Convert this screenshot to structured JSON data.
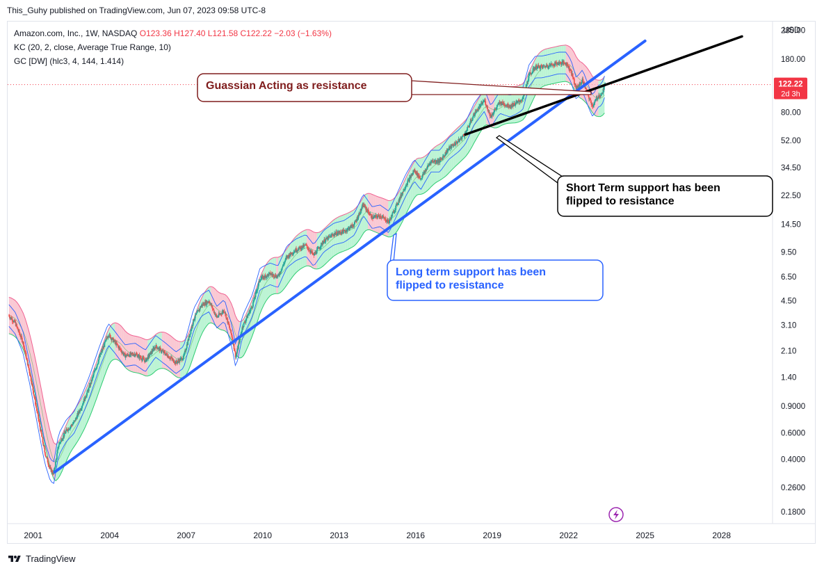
{
  "header": {
    "publisher_line": "This_Guhy published on TradingView.com, Jun 07, 2023 09:58 UTC-8"
  },
  "legend": {
    "symbol": "Amazon.com, Inc., 1W, NASDAQ",
    "ohlc": "O123.36  H127.40  L121.58  C122.22  −2.03 (−1.63%)",
    "kc": "KC (20, 2, close, Average True Range, 10)",
    "gc": "GC [DW] (hlc3, 4, 144, 1.414)"
  },
  "price_axis": {
    "currency": "USD",
    "last_price": "122.22",
    "countdown": "2d 3h"
  },
  "footer": {
    "brand": "TradingView"
  },
  "colors": {
    "candle_up": "#26a69a",
    "candle_down": "#ef5350",
    "trendline_long": "#2962ff",
    "trendline_short": "#000000",
    "keltner": "#2962ff",
    "gaussian_up": "#a5f0c5",
    "gaussian_down": "#f8b6c4",
    "price_label": "#f23645",
    "annotation_red": "#7f1d1d",
    "annotation_blue": "#2962ff"
  },
  "chart_data": {
    "type": "candlestick",
    "scale": "log",
    "x_ticks": [
      "2001",
      "2004",
      "2007",
      "2010",
      "2013",
      "2016",
      "2019",
      "2022",
      "2025",
      "2028"
    ],
    "y_ticks": [
      "280.00",
      "180.00",
      "80.00",
      "52.00",
      "34.50",
      "22.50",
      "14.50",
      "9.50",
      "6.50",
      "4.50",
      "3.10",
      "2.10",
      "1.40",
      "0.9000",
      "0.6000",
      "0.4000",
      "0.2600",
      "0.1800"
    ],
    "ylim": [
      0.15,
      320
    ],
    "xlim": [
      2000.0,
      2030.0
    ],
    "price_path": [
      [
        2000.05,
        3.6
      ],
      [
        2000.3,
        3.2
      ],
      [
        2000.6,
        2.4
      ],
      [
        2000.9,
        1.4
      ],
      [
        2001.2,
        0.75
      ],
      [
        2001.45,
        0.45
      ],
      [
        2001.65,
        0.35
      ],
      [
        2001.8,
        0.32
      ],
      [
        2002.0,
        0.5
      ],
      [
        2002.3,
        0.62
      ],
      [
        2002.6,
        0.7
      ],
      [
        2002.9,
        0.9
      ],
      [
        2003.2,
        1.2
      ],
      [
        2003.6,
        1.9
      ],
      [
        2003.95,
        2.7
      ],
      [
        2004.2,
        2.4
      ],
      [
        2004.6,
        1.95
      ],
      [
        2005.0,
        2.0
      ],
      [
        2005.4,
        1.8
      ],
      [
        2005.8,
        2.25
      ],
      [
        2006.2,
        2.0
      ],
      [
        2006.6,
        1.75
      ],
      [
        2006.9,
        1.9
      ],
      [
        2007.3,
        3.4
      ],
      [
        2007.6,
        4.2
      ],
      [
        2007.9,
        4.5
      ],
      [
        2008.2,
        3.5
      ],
      [
        2008.5,
        3.9
      ],
      [
        2008.8,
        2.6
      ],
      [
        2008.95,
        1.9
      ],
      [
        2009.2,
        3.0
      ],
      [
        2009.6,
        4.2
      ],
      [
        2009.9,
        6.3
      ],
      [
        2010.3,
        6.8
      ],
      [
        2010.6,
        6.5
      ],
      [
        2010.95,
        8.8
      ],
      [
        2011.3,
        9.8
      ],
      [
        2011.7,
        10.5
      ],
      [
        2012.0,
        9.0
      ],
      [
        2012.4,
        11.2
      ],
      [
        2012.8,
        12.5
      ],
      [
        2013.2,
        13.0
      ],
      [
        2013.6,
        14.5
      ],
      [
        2013.95,
        19.5
      ],
      [
        2014.3,
        16.0
      ],
      [
        2014.6,
        16.5
      ],
      [
        2014.95,
        15.0
      ],
      [
        2015.2,
        18.5
      ],
      [
        2015.6,
        26.0
      ],
      [
        2015.95,
        33.0
      ],
      [
        2016.2,
        29.0
      ],
      [
        2016.6,
        38.0
      ],
      [
        2016.95,
        38.0
      ],
      [
        2017.3,
        46.0
      ],
      [
        2017.7,
        52.0
      ],
      [
        2017.95,
        58.0
      ],
      [
        2018.3,
        78.0
      ],
      [
        2018.7,
        96.0
      ],
      [
        2018.95,
        75.0
      ],
      [
        2019.3,
        93.0
      ],
      [
        2019.7,
        88.0
      ],
      [
        2019.95,
        92.0
      ],
      [
        2020.2,
        98.0
      ],
      [
        2020.45,
        140.0
      ],
      [
        2020.7,
        160.0
      ],
      [
        2020.95,
        160.0
      ],
      [
        2021.3,
        165.0
      ],
      [
        2021.6,
        170.0
      ],
      [
        2021.9,
        170.0
      ],
      [
        2022.1,
        150.0
      ],
      [
        2022.3,
        115.0
      ],
      [
        2022.55,
        130.0
      ],
      [
        2022.8,
        100.0
      ],
      [
        2022.95,
        88.0
      ],
      [
        2023.15,
        102.0
      ],
      [
        2023.3,
        105.0
      ],
      [
        2023.44,
        122.22
      ]
    ],
    "annotations": [
      {
        "text": "Guassian Acting as resistance"
      },
      {
        "text": "Short Term support has been flipped to resistance"
      },
      {
        "text": "Long term support has been flipped to resistance"
      }
    ],
    "trendlines": [
      {
        "name": "long-term",
        "from": [
          2001.85,
          0.33
        ],
        "to": [
          2025.0,
          238.0
        ]
      },
      {
        "name": "short-term",
        "from": [
          2017.95,
          57.0
        ],
        "to": [
          2028.8,
          255.0
        ]
      }
    ],
    "last_price": 122.22
  }
}
